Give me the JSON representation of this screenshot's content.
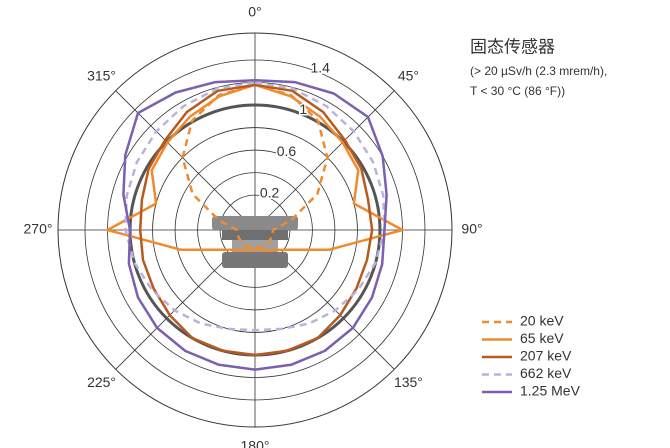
{
  "chart_data": {
    "type": "polar",
    "title": "固态传感器",
    "annotation": [
      "(> 20 µSv/h (2.3 mrem/h),",
      "T < 30 °C (86 °F))"
    ],
    "theta": [
      0,
      15,
      30,
      45,
      60,
      75,
      90,
      105,
      120,
      135,
      150,
      165,
      180,
      195,
      210,
      225,
      240,
      255,
      270,
      285,
      300,
      315,
      330,
      345
    ],
    "thetaticks": [
      {
        "value": 0,
        "label": "0°"
      },
      {
        "value": 45,
        "label": "45°"
      },
      {
        "value": 90,
        "label": "90°"
      },
      {
        "value": 135,
        "label": "135°"
      },
      {
        "value": 180,
        "label": "180°"
      },
      {
        "value": 225,
        "label": "225°"
      },
      {
        "value": 270,
        "label": "270°"
      },
      {
        "value": 315,
        "label": "315°"
      }
    ],
    "rlim": [
      -0.11,
      1.64
    ],
    "rticks": [
      0.2,
      0.6,
      1.0,
      1.4
    ],
    "rminor": [
      0.4,
      0.8,
      1.2
    ],
    "reference_circle": 1.0,
    "series": [
      {
        "name": "20 keV",
        "color": "#f08a2c",
        "dashed": true,
        "values": [
          1.18,
          1.13,
          1.01,
          0.8,
          0.53,
          0.22,
          0.05,
          0.05,
          0.05,
          0.05,
          0.05,
          0.05,
          0.05,
          0.05,
          0.05,
          0.05,
          0.05,
          0.05,
          0.05,
          0.22,
          0.53,
          0.8,
          1.01,
          1.13
        ]
      },
      {
        "name": "65 keV",
        "color": "#f08a2c",
        "dashed": false,
        "values": [
          1.18,
          1.12,
          1.05,
          0.99,
          0.95,
          0.8,
          1.2,
          0.57,
          0.24,
          0.14,
          0.1,
          0.07,
          0.06,
          0.07,
          0.1,
          0.14,
          0.24,
          0.57,
          1.2,
          0.8,
          0.95,
          0.99,
          1.05,
          1.12
        ]
      },
      {
        "name": "207 keV",
        "color": "#b85a1e",
        "dashed": false,
        "values": [
          1.18,
          1.17,
          1.1,
          1.02,
          0.98,
          0.93,
          0.93,
          0.92,
          0.93,
          0.96,
          1.0,
          1.0,
          1.0,
          1.0,
          1.0,
          0.96,
          0.93,
          0.92,
          0.91,
          0.93,
          0.98,
          1.02,
          1.1,
          1.17
        ]
      },
      {
        "name": "662 keV",
        "color": "#b9b2dc",
        "dashed": true,
        "values": [
          1.2,
          1.19,
          1.16,
          1.13,
          1.1,
          1.07,
          1.04,
          1.0,
          0.95,
          0.9,
          0.85,
          0.8,
          0.78,
          0.8,
          0.85,
          0.9,
          0.95,
          1.0,
          1.04,
          1.07,
          1.1,
          1.13,
          1.16,
          1.19
        ]
      },
      {
        "name": "1.25 MeV",
        "color": "#7b5fb0",
        "dashed": false,
        "values": [
          1.22,
          1.25,
          1.29,
          1.31,
          1.2,
          1.1,
          1.04,
          1.06,
          1.09,
          1.12,
          1.13,
          1.13,
          1.13,
          1.13,
          1.13,
          1.12,
          1.09,
          1.05,
          1.0,
          1.1,
          1.22,
          1.36,
          1.3,
          1.25
        ]
      }
    ]
  }
}
